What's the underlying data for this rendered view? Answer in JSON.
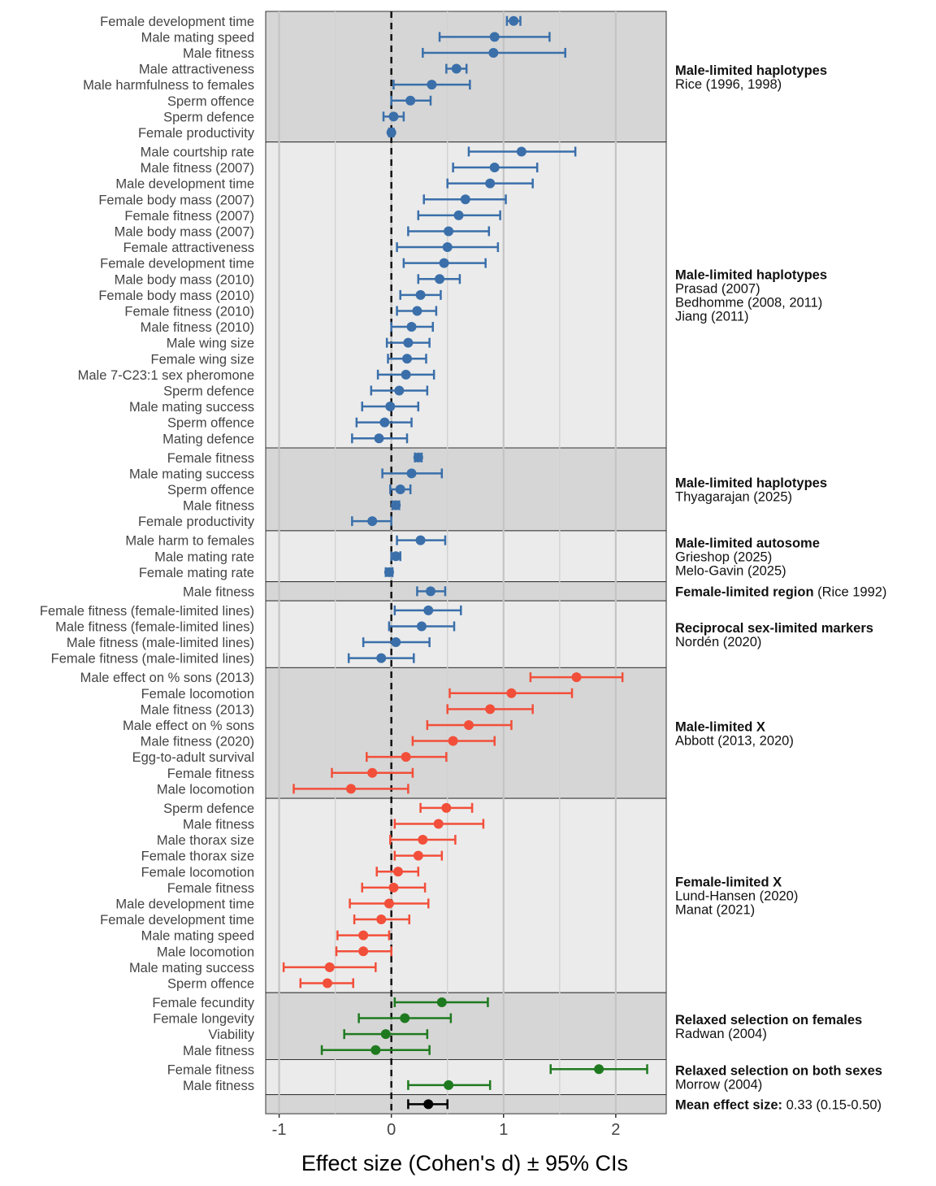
{
  "chart_data": {
    "type": "forest",
    "xlabel": "Effect size (Cohen's d) ± 95% CIs",
    "xlim": [
      -1.12,
      2.45
    ],
    "xticks": [
      -1,
      0,
      1,
      2
    ],
    "xtick_labels": [
      "-1",
      "0",
      "1",
      "2"
    ],
    "reference_line": 0,
    "colors": {
      "blue": "#3a6faa",
      "red": "#f24f3a",
      "green": "#1f7a1f",
      "black": "#000000",
      "panel_dark": "#d6d6d6",
      "panel_light": "#ebebeb"
    },
    "groups": [
      {
        "title": "Male-limited haplotypes",
        "citations": [
          "Rice (1996, 1998)"
        ],
        "color": "blue",
        "shade": "dark",
        "rows": [
          {
            "label": "Female development time",
            "est": 1.09,
            "lo": 1.03,
            "hi": 1.15
          },
          {
            "label": "Male mating speed",
            "est": 0.92,
            "lo": 0.43,
            "hi": 1.41
          },
          {
            "label": "Male fitness",
            "est": 0.91,
            "lo": 0.28,
            "hi": 1.55
          },
          {
            "label": "Male attractiveness",
            "est": 0.58,
            "lo": 0.49,
            "hi": 0.67
          },
          {
            "label": "Male harmfulness to females",
            "est": 0.36,
            "lo": 0.02,
            "hi": 0.7
          },
          {
            "label": "Sperm offence",
            "est": 0.17,
            "lo": 0.0,
            "hi": 0.35
          },
          {
            "label": "Sperm defence",
            "est": 0.02,
            "lo": -0.07,
            "hi": 0.11
          },
          {
            "label": "Female productivity",
            "est": 0.0,
            "lo": -0.02,
            "hi": 0.02
          }
        ]
      },
      {
        "title": "Male-limited haplotypes",
        "citations": [
          "Prasad (2007)",
          "Bedhomme (2008, 2011)",
          "Jiang (2011)"
        ],
        "color": "blue",
        "shade": "light",
        "rows": [
          {
            "label": "Male courtship rate",
            "est": 1.16,
            "lo": 0.69,
            "hi": 1.64
          },
          {
            "label": "Male fitness (2007)",
            "est": 0.92,
            "lo": 0.55,
            "hi": 1.3
          },
          {
            "label": "Male development time",
            "est": 0.88,
            "lo": 0.5,
            "hi": 1.26
          },
          {
            "label": "Female body mass (2007)",
            "est": 0.66,
            "lo": 0.29,
            "hi": 1.02
          },
          {
            "label": "Female fitness (2007)",
            "est": 0.6,
            "lo": 0.24,
            "hi": 0.97
          },
          {
            "label": "Male body mass (2007)",
            "est": 0.51,
            "lo": 0.15,
            "hi": 0.87
          },
          {
            "label": "Female attractiveness",
            "est": 0.5,
            "lo": 0.05,
            "hi": 0.95
          },
          {
            "label": "Female development time",
            "est": 0.47,
            "lo": 0.11,
            "hi": 0.84
          },
          {
            "label": "Male body mass (2010)",
            "est": 0.43,
            "lo": 0.24,
            "hi": 0.61
          },
          {
            "label": "Female body mass (2010)",
            "est": 0.26,
            "lo": 0.08,
            "hi": 0.44
          },
          {
            "label": "Female fitness (2010)",
            "est": 0.23,
            "lo": 0.05,
            "hi": 0.4
          },
          {
            "label": "Male fitness (2010)",
            "est": 0.18,
            "lo": 0.0,
            "hi": 0.37
          },
          {
            "label": "Male wing size",
            "est": 0.15,
            "lo": -0.04,
            "hi": 0.34
          },
          {
            "label": "Female wing size",
            "est": 0.14,
            "lo": -0.03,
            "hi": 0.31
          },
          {
            "label": "Male 7-C23:1 sex pheromone",
            "est": 0.13,
            "lo": -0.12,
            "hi": 0.38
          },
          {
            "label": "Sperm defence",
            "est": 0.07,
            "lo": -0.18,
            "hi": 0.32
          },
          {
            "label": "Male mating success",
            "est": -0.01,
            "lo": -0.26,
            "hi": 0.24
          },
          {
            "label": "Sperm offence",
            "est": -0.06,
            "lo": -0.31,
            "hi": 0.18
          },
          {
            "label": "Mating defence",
            "est": -0.11,
            "lo": -0.35,
            "hi": 0.14
          }
        ]
      },
      {
        "title": "Male-limited haplotypes",
        "citations": [
          "Thyagarajan (2025)"
        ],
        "color": "blue",
        "shade": "dark",
        "rows": [
          {
            "label": "Female fitness",
            "est": 0.24,
            "lo": 0.21,
            "hi": 0.27
          },
          {
            "label": "Male mating success",
            "est": 0.18,
            "lo": -0.08,
            "hi": 0.45
          },
          {
            "label": "Sperm offence",
            "est": 0.08,
            "lo": -0.01,
            "hi": 0.17
          },
          {
            "label": "Male fitness",
            "est": 0.04,
            "lo": 0.01,
            "hi": 0.07
          },
          {
            "label": "Female productivity",
            "est": -0.17,
            "lo": -0.35,
            "hi": 0.0
          }
        ]
      },
      {
        "title": "Male-limited autosome",
        "citations": [
          "Grieshop (2025)",
          "Melo-Gavin (2025)"
        ],
        "color": "blue",
        "shade": "light",
        "rows": [
          {
            "label": "Male harm to females",
            "est": 0.26,
            "lo": 0.05,
            "hi": 0.48
          },
          {
            "label": "Male mating rate",
            "est": 0.04,
            "lo": 0.0,
            "hi": 0.08
          },
          {
            "label": "Female mating rate",
            "est": -0.02,
            "lo": -0.05,
            "hi": 0.01
          }
        ]
      },
      {
        "title": "Female-limited region",
        "citations": [
          "(Rice 1992)"
        ],
        "inline_citation": true,
        "color": "blue",
        "shade": "dark",
        "rows": [
          {
            "label": "Male fitness",
            "est": 0.35,
            "lo": 0.23,
            "hi": 0.48
          }
        ]
      },
      {
        "title": "Reciprocal sex-limited markers",
        "citations": [
          "Nordén (2020)"
        ],
        "color": "blue",
        "shade": "light",
        "rows": [
          {
            "label": "Female fitness (female-limited lines)",
            "est": 0.33,
            "lo": 0.03,
            "hi": 0.62
          },
          {
            "label": "Male fitness (female-limited lines)",
            "est": 0.27,
            "lo": -0.02,
            "hi": 0.56
          },
          {
            "label": "Male fitness (male-limited lines)",
            "est": 0.04,
            "lo": -0.25,
            "hi": 0.34
          },
          {
            "label": "Female fitness (male-limited lines)",
            "est": -0.09,
            "lo": -0.38,
            "hi": 0.2
          }
        ]
      },
      {
        "title": "Male-limited X",
        "citations": [
          "Abbott (2013, 2020)"
        ],
        "color": "red",
        "shade": "dark",
        "rows": [
          {
            "label": "Male effect on % sons (2013)",
            "est": 1.65,
            "lo": 1.24,
            "hi": 2.06
          },
          {
            "label": "Female locomotion",
            "est": 1.07,
            "lo": 0.52,
            "hi": 1.61
          },
          {
            "label": "Male fitness (2013)",
            "est": 0.88,
            "lo": 0.5,
            "hi": 1.26
          },
          {
            "label": "Male effect on % sons",
            "est": 0.69,
            "lo": 0.32,
            "hi": 1.07
          },
          {
            "label": "Male fitness (2020)",
            "est": 0.55,
            "lo": 0.19,
            "hi": 0.92
          },
          {
            "label": "Egg-to-adult survival",
            "est": 0.13,
            "lo": -0.22,
            "hi": 0.49
          },
          {
            "label": "Female fitness",
            "est": -0.17,
            "lo": -0.53,
            "hi": 0.19
          },
          {
            "label": "Male locomotion",
            "est": -0.36,
            "lo": -0.87,
            "hi": 0.15
          }
        ]
      },
      {
        "title": "Female-limited X",
        "citations": [
          "Lund-Hansen (2020)",
          "Manat (2021)"
        ],
        "color": "red",
        "shade": "light",
        "rows": [
          {
            "label": "Sperm defence",
            "est": 0.49,
            "lo": 0.26,
            "hi": 0.72
          },
          {
            "label": "Male fitness",
            "est": 0.42,
            "lo": 0.03,
            "hi": 0.82
          },
          {
            "label": "Male thorax size",
            "est": 0.28,
            "lo": -0.01,
            "hi": 0.57
          },
          {
            "label": "Female thorax size",
            "est": 0.24,
            "lo": 0.03,
            "hi": 0.45
          },
          {
            "label": "Female locomotion",
            "est": 0.06,
            "lo": -0.13,
            "hi": 0.24
          },
          {
            "label": "Female fitness",
            "est": 0.02,
            "lo": -0.26,
            "hi": 0.3
          },
          {
            "label": "Male development time",
            "est": -0.02,
            "lo": -0.37,
            "hi": 0.33
          },
          {
            "label": "Female development time",
            "est": -0.09,
            "lo": -0.33,
            "hi": 0.16
          },
          {
            "label": "Male mating speed",
            "est": -0.25,
            "lo": -0.48,
            "hi": -0.02
          },
          {
            "label": "Male locomotion",
            "est": -0.25,
            "lo": -0.49,
            "hi": 0.0
          },
          {
            "label": "Male mating success",
            "est": -0.55,
            "lo": -0.96,
            "hi": -0.14
          },
          {
            "label": "Sperm offence",
            "est": -0.57,
            "lo": -0.81,
            "hi": -0.34
          }
        ]
      },
      {
        "title": "Relaxed selection on females",
        "citations": [
          "Radwan (2004)"
        ],
        "color": "green",
        "shade": "dark",
        "rows": [
          {
            "label": "Female fecundity",
            "est": 0.45,
            "lo": 0.03,
            "hi": 0.86
          },
          {
            "label": "Female longevity",
            "est": 0.12,
            "lo": -0.29,
            "hi": 0.53
          },
          {
            "label": "Viability",
            "est": -0.05,
            "lo": -0.42,
            "hi": 0.32
          },
          {
            "label": "Male fitness",
            "est": -0.14,
            "lo": -0.62,
            "hi": 0.34
          }
        ]
      },
      {
        "title": "Relaxed selection on both sexes",
        "citations": [
          "Morrow (2004)"
        ],
        "color": "green",
        "shade": "light",
        "rows": [
          {
            "label": "Female fitness",
            "est": 1.85,
            "lo": 1.42,
            "hi": 2.28
          },
          {
            "label": "Male fitness",
            "est": 0.51,
            "lo": 0.15,
            "hi": 0.88
          }
        ]
      },
      {
        "title": "Mean effect size:",
        "citations": [
          "0.33 (0.15-0.50)"
        ],
        "inline_citation": true,
        "color": "black",
        "shade": "dark",
        "rows": [
          {
            "label": "",
            "est": 0.33,
            "lo": 0.15,
            "hi": 0.5
          }
        ]
      }
    ]
  }
}
